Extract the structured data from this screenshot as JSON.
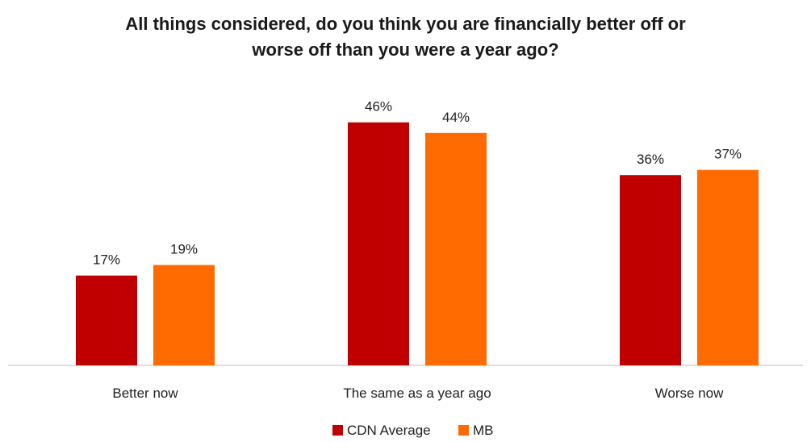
{
  "chart_data": {
    "type": "bar",
    "title_lines": [
      "All things considered, do you think you are financially better off or",
      "worse off than you were a year ago?"
    ],
    "categories": [
      "Better now",
      "The same as a year ago",
      "Worse now"
    ],
    "series": [
      {
        "name": "CDN Average",
        "color": "#C00000",
        "values": [
          17,
          46,
          36
        ],
        "labels": [
          "17%",
          "46%",
          "36%"
        ]
      },
      {
        "name": "MB",
        "color": "#FF6B00",
        "values": [
          19,
          44,
          37
        ],
        "labels": [
          "19%",
          "44%",
          "37%"
        ]
      }
    ],
    "ylim": [
      0,
      50
    ],
    "grid": false,
    "legend_position": "bottom"
  }
}
